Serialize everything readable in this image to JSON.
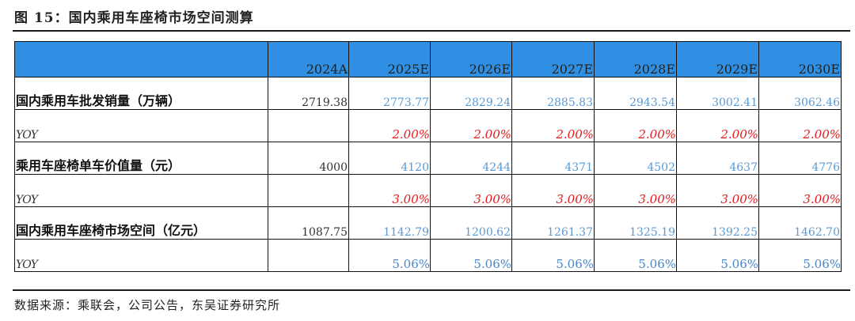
{
  "title": "图 15：国内乘用车座椅市场空间测算",
  "header": {
    "first": "",
    "years": [
      "2024A",
      "2025E",
      "2026E",
      "2027E",
      "2028E",
      "2029E",
      "2030E"
    ]
  },
  "rows": [
    {
      "label": "国内乘用车批发销量（万辆）",
      "kind": "value",
      "values": [
        "2719.38",
        "2773.77",
        "2829.24",
        "2885.83",
        "2943.54",
        "3002.41",
        "3062.46"
      ]
    },
    {
      "label": "YOY",
      "kind": "yoy-red",
      "values": [
        "",
        "2.00%",
        "2.00%",
        "2.00%",
        "2.00%",
        "2.00%",
        "2.00%"
      ]
    },
    {
      "label": "乘用车座椅单车价值量（元）",
      "kind": "value",
      "values": [
        "4000",
        "4120",
        "4244",
        "4371",
        "4502",
        "4637",
        "4776"
      ]
    },
    {
      "label": "YOY",
      "kind": "yoy-red",
      "values": [
        "",
        "3.00%",
        "3.00%",
        "3.00%",
        "3.00%",
        "3.00%",
        "3.00%"
      ]
    },
    {
      "label": "国内乘用车座椅市场空间（亿元）",
      "kind": "value",
      "values": [
        "1087.75",
        "1142.79",
        "1200.62",
        "1261.37",
        "1325.19",
        "1392.25",
        "1462.70"
      ]
    },
    {
      "label": "YOY",
      "kind": "yoy-blue",
      "values": [
        "",
        "5.06%",
        "5.06%",
        "5.06%",
        "5.06%",
        "5.06%",
        "5.06%"
      ]
    }
  ],
  "source": "数据来源：乘联会，公司公告，东吴证券研究所",
  "colors": {
    "header_bg": "#2e8fe3",
    "value_blue": "#5b9bd5",
    "pct_red": "#e8181b"
  }
}
